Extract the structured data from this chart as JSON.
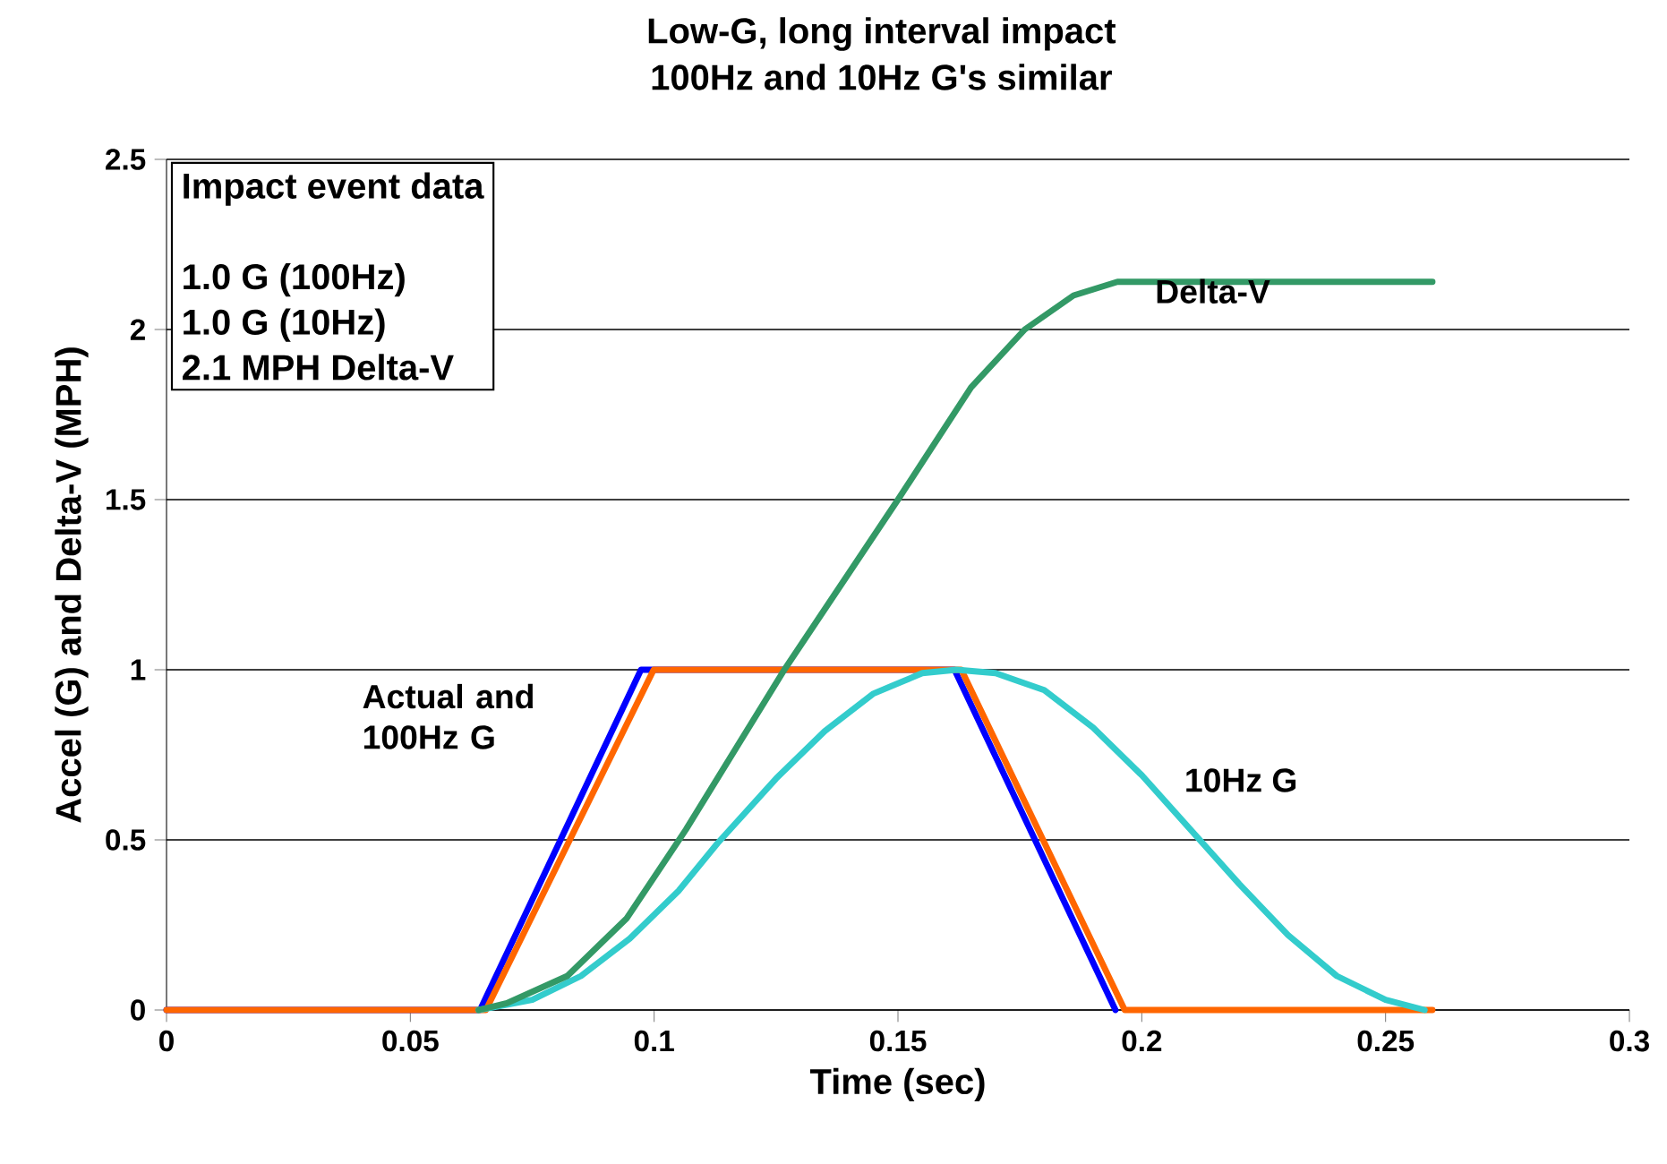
{
  "chart_data": {
    "type": "line",
    "title": "Low-G, long interval impact",
    "subtitle": "100Hz and 10Hz G's similar",
    "xlabel": "Time (sec)",
    "ylabel": "Accel (G) and Delta-V (MPH)",
    "xlim": [
      0,
      0.3
    ],
    "ylim": [
      0,
      2.5
    ],
    "xticks": [
      0,
      0.05,
      0.1,
      0.15,
      0.2,
      0.25,
      0.3
    ],
    "yticks": [
      0,
      0.5,
      1,
      1.5,
      2,
      2.5
    ],
    "grid": "y",
    "marker": "none",
    "line_style": "solid",
    "series": [
      {
        "color": "#0000ff",
        "x": [
          0,
          0.0643,
          0.0973,
          0.1616,
          0.1946
        ],
        "values": [
          0,
          0,
          1,
          1,
          0
        ]
      },
      {
        "color": "#ff6600",
        "x": [
          0,
          0.0655,
          0.0999,
          0.163,
          0.1965,
          0.2596
        ],
        "values": [
          0,
          0,
          1,
          1,
          0,
          0
        ]
      },
      {
        "name": "10Hz G",
        "color": "#33cccc",
        "x": [
          0.064,
          0.075,
          0.085,
          0.095,
          0.105,
          0.113,
          0.125,
          0.135,
          0.145,
          0.155,
          0.162,
          0.17,
          0.18,
          0.19,
          0.2,
          0.21,
          0.22,
          0.23,
          0.24,
          0.25,
          0.258
        ],
        "values": [
          0,
          0.03,
          0.1,
          0.21,
          0.35,
          0.49,
          0.68,
          0.82,
          0.93,
          0.99,
          1.0,
          0.99,
          0.94,
          0.83,
          0.69,
          0.53,
          0.37,
          0.22,
          0.1,
          0.03,
          0
        ]
      },
      {
        "name": "Delta-V",
        "color": "#339966",
        "x": [
          0.064,
          0.0698,
          0.0822,
          0.0944,
          0.1065,
          0.1267,
          0.15,
          0.165,
          0.176,
          0.186,
          0.195,
          0.2596
        ],
        "values": [
          0,
          0.02,
          0.1,
          0.27,
          0.53,
          1.0,
          1.5,
          1.83,
          2.0,
          2.1,
          2.14,
          2.14
        ]
      }
    ],
    "annotations": [
      "Impact event data",
      "1.0 G (100Hz)",
      "1.0 G (10Hz)",
      "2.1 MPH Delta-V",
      "Actual and 100Hz G"
    ]
  }
}
